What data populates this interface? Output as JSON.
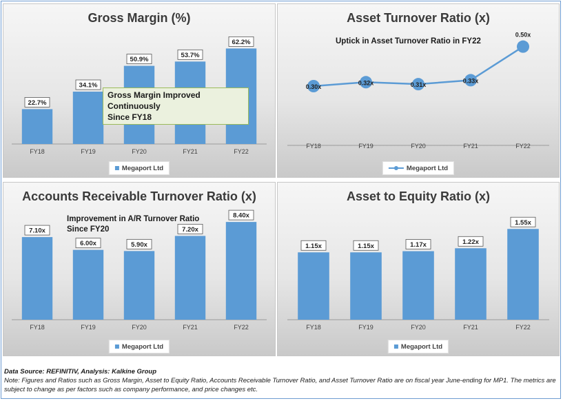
{
  "colors": {
    "bar": "#5b9bd5",
    "text": "#3a3a3a"
  },
  "panels": {
    "gross_margin": {
      "title": "Gross Margin (%)",
      "legend": "Megaport Ltd",
      "annotation": [
        "Gross Margin Improved Continuously",
        "Since FY18"
      ]
    },
    "asset_turnover": {
      "title": "Asset Turnover Ratio (x)",
      "legend": "Megaport Ltd",
      "annotation": "Uptick in Asset Turnover Ratio in FY22"
    },
    "ar_turnover": {
      "title": "Accounts Receivable Turnover Ratio (x)",
      "legend": "Megaport Ltd",
      "annotation": [
        "Improvement in A/R Turnover Ratio",
        "Since FY20"
      ]
    },
    "asset_equity": {
      "title": "Asset to Equity Ratio (x)",
      "legend": "Megaport Ltd"
    }
  },
  "footer": {
    "source": "Data Source: REFINITIV, Analysis: Kalkine Group",
    "note": "Note: Figures and Ratios such as Gross Margin, Asset to Equity Ratio, Accounts Receivable Turnover Ratio, and Asset Turnover Ratio are on fiscal year June-ending for MP1. The metrics are subject to change as per factors such as company performance, and price changes etc."
  },
  "chart_data": [
    {
      "type": "bar",
      "title": "Gross Margin (%)",
      "categories": [
        "FY18",
        "FY19",
        "FY20",
        "FY21",
        "FY22"
      ],
      "series": [
        {
          "name": "Megaport Ltd",
          "values": [
            22.7,
            34.1,
            50.9,
            53.7,
            62.2
          ]
        }
      ],
      "labels": [
        "22.7%",
        "34.1%",
        "50.9%",
        "53.7%",
        "62.2%"
      ],
      "ylim": [
        0,
        70
      ],
      "grid": false,
      "legend": "bottom"
    },
    {
      "type": "line",
      "title": "Asset Turnover Ratio (x)",
      "categories": [
        "FY18",
        "FY19",
        "FY20",
        "FY21",
        "FY22"
      ],
      "series": [
        {
          "name": "Megaport Ltd",
          "values": [
            0.3,
            0.32,
            0.31,
            0.33,
            0.5
          ]
        }
      ],
      "labels": [
        "0.30x",
        "0.32x",
        "0.31x",
        "0.33x",
        "0.50x"
      ],
      "ylim": [
        0,
        0.6
      ],
      "grid": false,
      "legend": "bottom"
    },
    {
      "type": "bar",
      "title": "Accounts Receivable Turnover Ratio (x)",
      "categories": [
        "FY18",
        "FY19",
        "FY20",
        "FY21",
        "FY22"
      ],
      "series": [
        {
          "name": "Megaport Ltd",
          "values": [
            7.1,
            6.0,
            5.9,
            7.2,
            8.4
          ]
        }
      ],
      "labels": [
        "7.10x",
        "6.00x",
        "5.90x",
        "7.20x",
        "8.40x"
      ],
      "ylim": [
        0,
        9
      ],
      "grid": false,
      "legend": "bottom"
    },
    {
      "type": "bar",
      "title": "Asset to Equity Ratio (x)",
      "categories": [
        "FY18",
        "FY19",
        "FY20",
        "FY21",
        "FY22"
      ],
      "series": [
        {
          "name": "Megaport Ltd",
          "values": [
            1.15,
            1.15,
            1.17,
            1.22,
            1.55
          ]
        }
      ],
      "labels": [
        "1.15x",
        "1.15x",
        "1.17x",
        "1.22x",
        "1.55x"
      ],
      "ylim": [
        0,
        1.8
      ],
      "grid": false,
      "legend": "bottom"
    }
  ]
}
